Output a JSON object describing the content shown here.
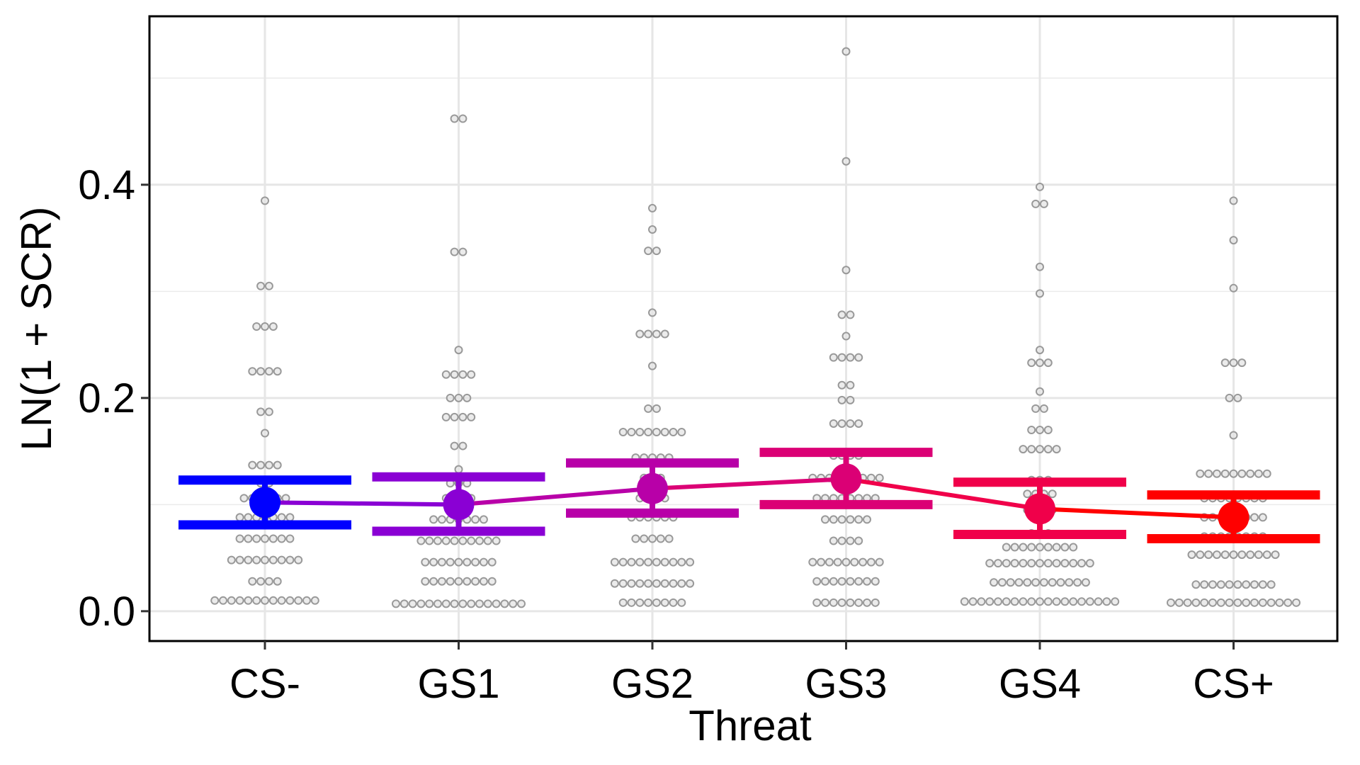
{
  "chart_data": {
    "type": "scatter",
    "title": "",
    "xlabel": "Threat",
    "ylabel": "LN(1 + SCR)",
    "categories": [
      "CS-",
      "GS1",
      "GS2",
      "GS3",
      "GS4",
      "CS+"
    ],
    "ylim": [
      -0.028,
      0.558
    ],
    "yticks": [
      0.0,
      0.2,
      0.4
    ],
    "ytick_labels": [
      "0.0",
      "0.2",
      "0.4"
    ],
    "grid": true,
    "legend": "none",
    "series": [
      {
        "type": "line-with-errorbars",
        "means": [
          0.102,
          0.1,
          0.115,
          0.124,
          0.096,
          0.088
        ],
        "error_lower": [
          0.081,
          0.075,
          0.092,
          0.1,
          0.072,
          0.068
        ],
        "error_upper": [
          0.123,
          0.126,
          0.139,
          0.149,
          0.121,
          0.109
        ],
        "colors": [
          "#0000FF",
          "#8A00D4",
          "#B800A8",
          "#DB0075",
          "#F0004A",
          "#FF0000"
        ]
      },
      {
        "type": "dotplot",
        "color": "#999999",
        "bins": [
          [
            [
              0.01,
              13
            ],
            [
              0.028,
              4
            ],
            [
              0.048,
              9
            ],
            [
              0.068,
              7
            ],
            [
              0.088,
              7
            ],
            [
              0.106,
              6
            ],
            [
              0.12,
              2
            ],
            [
              0.137,
              4
            ],
            [
              0.167,
              1
            ],
            [
              0.187,
              2
            ],
            [
              0.225,
              4
            ],
            [
              0.267,
              3
            ],
            [
              0.305,
              2
            ],
            [
              0.385,
              1
            ]
          ],
          [
            [
              0.007,
              16
            ],
            [
              0.028,
              9
            ],
            [
              0.046,
              9
            ],
            [
              0.066,
              10
            ],
            [
              0.086,
              7
            ],
            [
              0.106,
              4
            ],
            [
              0.12,
              3
            ],
            [
              0.133,
              1
            ],
            [
              0.155,
              2
            ],
            [
              0.182,
              4
            ],
            [
              0.2,
              3
            ],
            [
              0.222,
              4
            ],
            [
              0.245,
              1
            ],
            [
              0.337,
              2
            ],
            [
              0.462,
              2
            ]
          ],
          [
            [
              0.008,
              8
            ],
            [
              0.026,
              10
            ],
            [
              0.046,
              10
            ],
            [
              0.068,
              5
            ],
            [
              0.088,
              6
            ],
            [
              0.106,
              4
            ],
            [
              0.125,
              3
            ],
            [
              0.144,
              5
            ],
            [
              0.168,
              8
            ],
            [
              0.19,
              2
            ],
            [
              0.23,
              1
            ],
            [
              0.26,
              4
            ],
            [
              0.28,
              1
            ],
            [
              0.338,
              2
            ],
            [
              0.358,
              1
            ],
            [
              0.378,
              1
            ]
          ],
          [
            [
              0.008,
              8
            ],
            [
              0.028,
              8
            ],
            [
              0.046,
              9
            ],
            [
              0.066,
              4
            ],
            [
              0.086,
              6
            ],
            [
              0.106,
              8
            ],
            [
              0.125,
              9
            ],
            [
              0.146,
              4
            ],
            [
              0.176,
              4
            ],
            [
              0.198,
              2
            ],
            [
              0.212,
              2
            ],
            [
              0.238,
              4
            ],
            [
              0.258,
              1
            ],
            [
              0.278,
              2
            ],
            [
              0.32,
              1
            ],
            [
              0.422,
              1
            ],
            [
              0.525,
              1
            ]
          ],
          [
            [
              0.009,
              19
            ],
            [
              0.027,
              12
            ],
            [
              0.045,
              13
            ],
            [
              0.06,
              9
            ],
            [
              0.073,
              3
            ],
            [
              0.095,
              4
            ],
            [
              0.11,
              4
            ],
            [
              0.123,
              3
            ],
            [
              0.152,
              5
            ],
            [
              0.17,
              3
            ],
            [
              0.19,
              2
            ],
            [
              0.206,
              1
            ],
            [
              0.233,
              3
            ],
            [
              0.245,
              1
            ],
            [
              0.298,
              1
            ],
            [
              0.323,
              1
            ],
            [
              0.382,
              2
            ],
            [
              0.398,
              1
            ]
          ],
          [
            [
              0.008,
              16
            ],
            [
              0.025,
              10
            ],
            [
              0.053,
              11
            ],
            [
              0.07,
              8
            ],
            [
              0.088,
              8
            ],
            [
              0.106,
              8
            ],
            [
              0.129,
              9
            ],
            [
              0.165,
              1
            ],
            [
              0.2,
              2
            ],
            [
              0.233,
              3
            ],
            [
              0.303,
              1
            ],
            [
              0.348,
              1
            ],
            [
              0.385,
              1
            ]
          ]
        ]
      }
    ]
  }
}
